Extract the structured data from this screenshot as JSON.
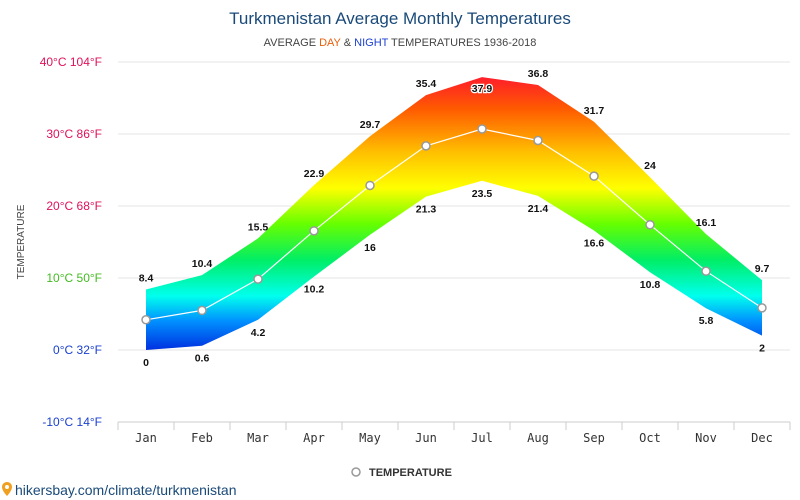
{
  "chart_data": {
    "type": "area",
    "title": "Turkmenistan Average Monthly Temperatures",
    "subtitle": {
      "prefix": "AVERAGE ",
      "day": "DAY",
      "middle": " & ",
      "night": "NIGHT",
      "suffix": " TEMPERATURES 1936-2018",
      "day_color": "#e8600c",
      "night_color": "#1a3fcf"
    },
    "ylabel": "TEMPERATURE",
    "xlabel": "",
    "categories": [
      "Jan",
      "Feb",
      "Mar",
      "Apr",
      "May",
      "Jun",
      "Jul",
      "Aug",
      "Sep",
      "Oct",
      "Nov",
      "Dec"
    ],
    "ylim": [
      -10,
      40
    ],
    "yticks": [
      {
        "value": 40,
        "label": "40°C 104°F",
        "color": "#e0105a"
      },
      {
        "value": 30,
        "label": "30°C 86°F",
        "color": "#e0105a"
      },
      {
        "value": 20,
        "label": "20°C 68°F",
        "color": "#e0105a"
      },
      {
        "value": 10,
        "label": "10°C 50°F",
        "color": "#44bb22"
      },
      {
        "value": 0,
        "label": "0°C 32°F",
        "color": "#1a3fcf"
      },
      {
        "value": -10,
        "label": "-10°C 14°F",
        "color": "#1a3fcf"
      }
    ],
    "grid": true,
    "series": [
      {
        "values": [
          8.4,
          10.4,
          15.5,
          22.9,
          29.7,
          35.4,
          37.9,
          36.8,
          31.7,
          24,
          16.1,
          9.7
        ]
      },
      {
        "values": [
          0,
          0.6,
          4.2,
          10.2,
          16,
          21.3,
          23.5,
          21.4,
          16.6,
          10.8,
          5.8,
          2
        ]
      },
      {
        "name": "TEMPERATURE",
        "values": [
          4.2,
          5.5,
          9.85,
          16.55,
          22.85,
          28.35,
          30.7,
          29.1,
          24.15,
          17.4,
          10.95,
          5.85
        ]
      }
    ],
    "legend": {
      "position": "bottom",
      "label": "TEMPERATURE"
    }
  },
  "footer": {
    "text": "hikersbay.com/climate/turkmenistan"
  }
}
